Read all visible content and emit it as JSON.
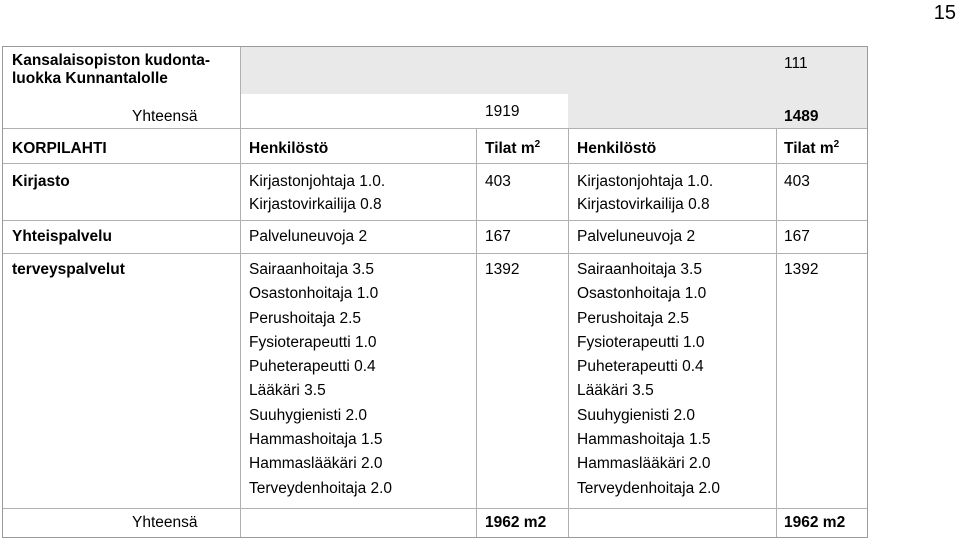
{
  "page_number": "15",
  "header": {
    "place_name": "Kansalaisopiston kudonta-luokka Kunnantalolle",
    "value_111": "111",
    "total_label": "Yhteensä",
    "total_old": "1919",
    "total_new": "1489"
  },
  "columns": {
    "location": "KORPILAHTI",
    "staff_old": "Henkilöstö",
    "area_old": "Tilat m",
    "staff_new": "Henkilöstö",
    "area_new": "Tilat m",
    "superscript": "2"
  },
  "rows": [
    {
      "name": "Kirjasto",
      "staff_old": [
        "Kirjastonjohtaja 1.0.",
        "Kirjastovirkailija 0.8"
      ],
      "area_old": "403",
      "staff_new": [
        "Kirjastonjohtaja 1.0.",
        "Kirjastovirkailija 0.8"
      ],
      "area_new": "403"
    },
    {
      "name": "Yhteispalvelu",
      "staff_old": [
        "Palveluneuvoja 2"
      ],
      "area_old": "167",
      "staff_new": [
        "Palveluneuvoja 2"
      ],
      "area_new": "167"
    },
    {
      "name": "terveyspalvelut",
      "staff_old": [
        "Sairaanhoitaja 3.5",
        "Osastonhoitaja 1.0",
        "Perushoitaja 2.5",
        "Fysioterapeutti 1.0",
        "Puheterapeutti 0.4",
        "Lääkäri 3.5",
        "Suuhygienisti 2.0",
        "Hammashoitaja 1.5",
        "Hammaslääkäri 2.0",
        "Terveydenhoitaja 2.0"
      ],
      "area_old": "1392",
      "staff_new": [
        "Sairaanhoitaja 3.5",
        "Osastonhoitaja 1.0",
        "Perushoitaja 2.5",
        "Fysioterapeutti 1.0",
        "Puheterapeutti 0.4",
        "Lääkäri 3.5",
        "Suuhygienisti 2.0",
        "Hammashoitaja 1.5",
        "Hammaslääkäri 2.0",
        "Terveydenhoitaja 2.0"
      ],
      "area_new": "1392"
    }
  ],
  "footer": {
    "total_label": "Yhteensä",
    "total_old": "1962 m2",
    "total_new": "1962 m2"
  }
}
